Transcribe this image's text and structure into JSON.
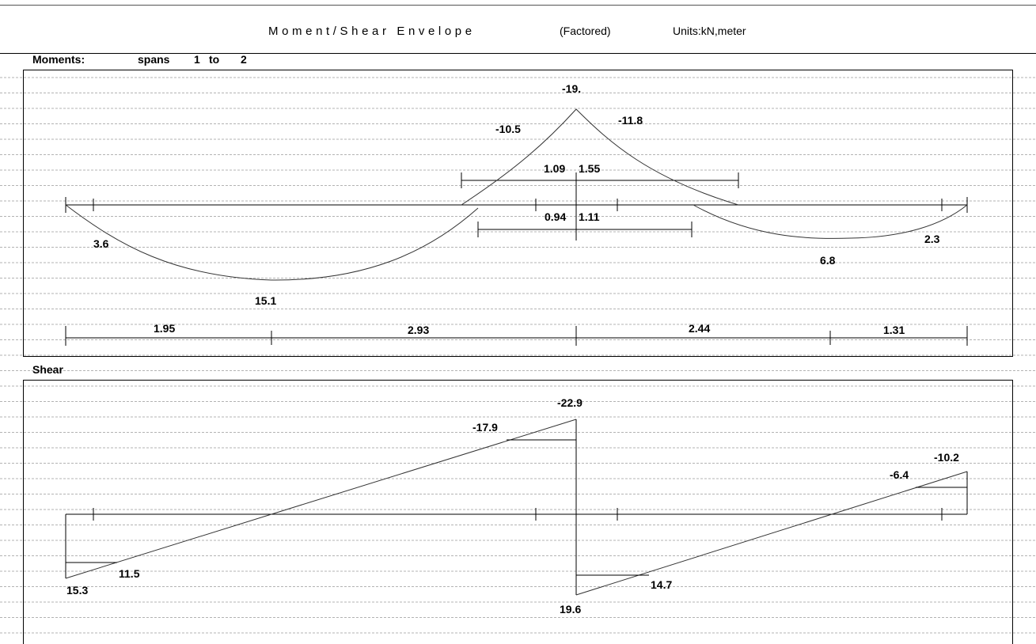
{
  "header": {
    "title_spaced": "Moment/Shear Envelope",
    "factored": "(Factored)",
    "units": "Units:kN,meter"
  },
  "moments": {
    "title": "Moments:",
    "spans_text": "spans",
    "span_from": "1",
    "span_to_word": "to",
    "span_to": "2",
    "span_lengths": [
      1.95,
      2.93,
      2.44,
      1.31
    ],
    "peak_labels": [
      {
        "name": "span1-max-positive",
        "text": "15.1",
        "value": 15.1
      },
      {
        "name": "left-end-moment",
        "text": "3.6",
        "value": 3.6
      },
      {
        "name": "support-negative-peak",
        "text": "-19.",
        "value": -19.0
      },
      {
        "name": "support-left-face",
        "text": "-10.5",
        "value": -10.5
      },
      {
        "name": "support-right-face",
        "text": "-11.8",
        "value": -11.8
      },
      {
        "name": "span2-max-positive",
        "text": "6.8",
        "value": 6.8
      },
      {
        "name": "right-end-moment",
        "text": "2.3",
        "value": 2.3
      }
    ],
    "negative_extent": {
      "left": "1.09",
      "right": "1.55"
    },
    "positive_cutoff": {
      "left": "0.94",
      "right": "1.11"
    }
  },
  "shear": {
    "title": "Shear",
    "labels": [
      {
        "name": "left-support-shear",
        "text": "15.3",
        "value": 15.3
      },
      {
        "name": "left-face-shear",
        "text": "11.5",
        "value": 11.5
      },
      {
        "name": "support-left-max-shear",
        "text": "-22.9",
        "value": -22.9
      },
      {
        "name": "support-left-face-shear",
        "text": "-17.9",
        "value": -17.9
      },
      {
        "name": "support-right-max-shear",
        "text": "19.6",
        "value": 19.6
      },
      {
        "name": "support-right-face-shear",
        "text": "14.7",
        "value": 14.7
      },
      {
        "name": "right-support-shear",
        "text": "-10.2",
        "value": -10.2
      },
      {
        "name": "right-face-shear",
        "text": "-6.4",
        "value": -6.4
      }
    ]
  },
  "chart_data": [
    {
      "type": "line",
      "title": "Moments: spans 1 to 2",
      "xlabel": "",
      "ylabel": "",
      "units": "kN, meter",
      "span_lengths": [
        1.95,
        2.93,
        2.44,
        1.31
      ],
      "series": [
        {
          "name": "positive-span-1",
          "x": [
            0,
            0.9,
            1.95,
            3.0,
            3.94
          ],
          "y": [
            0,
            8.9,
            15.1,
            11.0,
            0
          ]
        },
        {
          "name": "negative-support",
          "x": [
            3.79,
            4.3,
            4.88,
            5.5,
            6.43
          ],
          "y": [
            0,
            -10.5,
            -19.0,
            -11.8,
            0
          ]
        },
        {
          "name": "positive-span-2",
          "x": [
            5.99,
            7.32,
            8.63
          ],
          "y": [
            0,
            6.8,
            0
          ]
        }
      ],
      "annotations": [
        "3.6",
        "15.1",
        "-19.",
        "-10.5",
        "-11.8",
        "6.8",
        "2.3",
        "1.09",
        "1.55",
        "0.94",
        "1.11"
      ]
    },
    {
      "type": "line",
      "title": "Shear",
      "xlabel": "",
      "ylabel": "",
      "units": "kN, meter",
      "series": [
        {
          "name": "shear-span-1",
          "x": [
            0,
            4.88
          ],
          "y": [
            15.3,
            -22.9
          ]
        },
        {
          "name": "shear-span-2",
          "x": [
            4.88,
            8.63
          ],
          "y": [
            19.6,
            -10.2
          ]
        }
      ],
      "annotations": [
        "15.3",
        "11.5",
        "-22.9",
        "-17.9",
        "19.6",
        "14.7",
        "-10.2",
        "-6.4"
      ]
    }
  ]
}
